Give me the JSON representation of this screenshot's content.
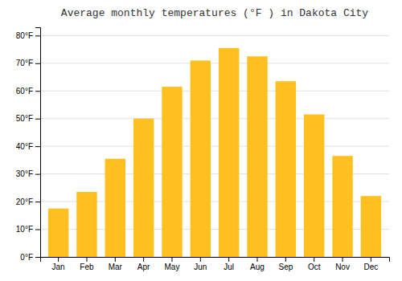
{
  "chart_data": {
    "type": "bar",
    "title": "Average monthly temperatures (°F ) in Dakota City",
    "categories": [
      "Jan",
      "Feb",
      "Mar",
      "Apr",
      "May",
      "Jun",
      "Jul",
      "Aug",
      "Sep",
      "Oct",
      "Nov",
      "Dec"
    ],
    "values": [
      17.5,
      23.5,
      35.5,
      50.0,
      61.5,
      71.0,
      75.5,
      72.5,
      63.5,
      51.5,
      36.5,
      22.0
    ],
    "color": "#FFC020",
    "ylim": [
      0,
      83
    ],
    "yticks": [
      {
        "value": 0,
        "label": "0°F"
      },
      {
        "value": 10,
        "label": "10°F"
      },
      {
        "value": 20,
        "label": "20°F"
      },
      {
        "value": 30,
        "label": "30°F"
      },
      {
        "value": 40,
        "label": "40°F"
      },
      {
        "value": 50,
        "label": "50°F"
      },
      {
        "value": 60,
        "label": "60°F"
      },
      {
        "value": 70,
        "label": "70°F"
      },
      {
        "value": 80,
        "label": "80°F"
      }
    ],
    "grid": true
  }
}
